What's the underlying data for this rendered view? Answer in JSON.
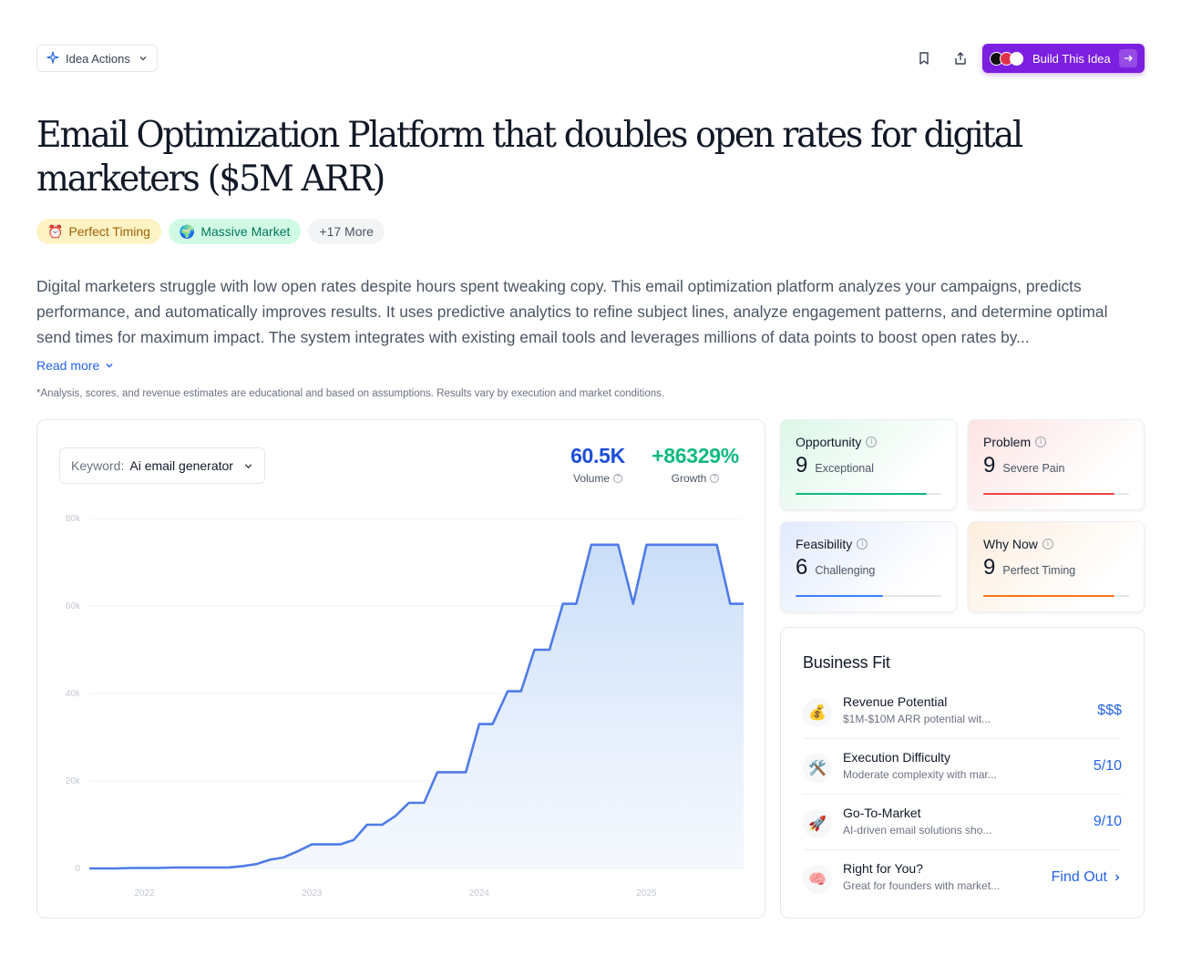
{
  "header": {
    "idea_actions_label": "Idea Actions",
    "build_label": "Build This Idea",
    "avatar_colors": [
      "#111111",
      "#e0314b",
      "#ffffff"
    ]
  },
  "title": "Email Optimization Platform that doubles open rates for digital marketers ($5M ARR)",
  "tags": [
    {
      "icon": "⏰",
      "label": "Perfect Timing"
    },
    {
      "icon": "🌍",
      "label": "Massive Market"
    },
    {
      "icon": "",
      "label": "+17 More"
    }
  ],
  "description": "Digital marketers struggle with low open rates despite hours spent tweaking copy. This email optimization platform analyzes your campaigns, predicts performance, and automatically improves results. It uses predictive analytics to refine subject lines, analyze engagement patterns, and determine optimal send times for maximum impact. The system integrates with existing email tools and leverages millions of data points to boost open rates by...",
  "read_more_label": "Read more",
  "disclaimer": "*Analysis, scores, and revenue estimates are educational and based on assumptions. Results vary by execution and market conditions.",
  "trend": {
    "keyword_label": "Keyword:",
    "keyword_value": "Ai email generator",
    "volume_value": "60.5K",
    "volume_label": "Volume",
    "growth_value": "+86329%",
    "growth_label": "Growth"
  },
  "chart_data": {
    "type": "area",
    "x_ticks": [
      "2022",
      "2023",
      "2024",
      "2025"
    ],
    "x_tick_positions": [
      2022,
      2023,
      2024,
      2025
    ],
    "xlim": [
      2021.67,
      2025.58
    ],
    "y_ticks": [
      "0",
      "20k",
      "40k",
      "60k",
      "80k"
    ],
    "y_tick_values": [
      0,
      20000,
      40000,
      60000,
      80000
    ],
    "ylim": [
      0,
      80000
    ],
    "grid": true,
    "color": "#4f7be8",
    "x": [
      2021.67,
      2021.75,
      2021.83,
      2021.92,
      2022.0,
      2022.08,
      2022.17,
      2022.25,
      2022.33,
      2022.42,
      2022.5,
      2022.58,
      2022.67,
      2022.75,
      2022.83,
      2022.92,
      2023.0,
      2023.08,
      2023.17,
      2023.25,
      2023.33,
      2023.42,
      2023.5,
      2023.58,
      2023.67,
      2023.75,
      2023.83,
      2023.92,
      2024.0,
      2024.08,
      2024.17,
      2024.25,
      2024.33,
      2024.42,
      2024.5,
      2024.58,
      2024.67,
      2024.75,
      2024.83,
      2024.92,
      2025.0,
      2025.08,
      2025.17,
      2025.25,
      2025.33,
      2025.42,
      2025.5,
      2025.58
    ],
    "values": [
      0,
      0,
      0,
      100,
      100,
      100,
      200,
      200,
      200,
      200,
      200,
      500,
      1000,
      2000,
      2500,
      4000,
      5500,
      5500,
      5500,
      6500,
      10000,
      10000,
      12000,
      15000,
      15000,
      22000,
      22000,
      22000,
      33000,
      33000,
      40500,
      40500,
      50000,
      50000,
      60500,
      60500,
      74000,
      74000,
      74000,
      60500,
      74000,
      74000,
      74000,
      74000,
      74000,
      74000,
      60500,
      60500
    ]
  },
  "scores": [
    {
      "name": "Opportunity",
      "value": "9",
      "label": "Exceptional",
      "fraction": 0.9,
      "color": "#10b981"
    },
    {
      "name": "Problem",
      "value": "9",
      "label": "Severe Pain",
      "fraction": 0.9,
      "color": "#ef4444"
    },
    {
      "name": "Feasibility",
      "value": "6",
      "label": "Challenging",
      "fraction": 0.6,
      "color": "#3b82f6"
    },
    {
      "name": "Why Now",
      "value": "9",
      "label": "Perfect Timing",
      "fraction": 0.9,
      "color": "#f97316"
    }
  ],
  "business_fit": {
    "title": "Business Fit",
    "items": [
      {
        "icon": "💰",
        "name": "Revenue Potential",
        "desc": "$1M-$10M ARR potential wit...",
        "value": "$$$"
      },
      {
        "icon": "🛠️",
        "name": "Execution Difficulty",
        "desc": "Moderate complexity with mar...",
        "value": "5/10"
      },
      {
        "icon": "🚀",
        "name": "Go-To-Market",
        "desc": "AI-driven email solutions sho...",
        "value": "9/10"
      },
      {
        "icon": "🧠",
        "name": "Right for You?",
        "desc": "Great for founders with market...",
        "value": "Find Out"
      }
    ]
  }
}
